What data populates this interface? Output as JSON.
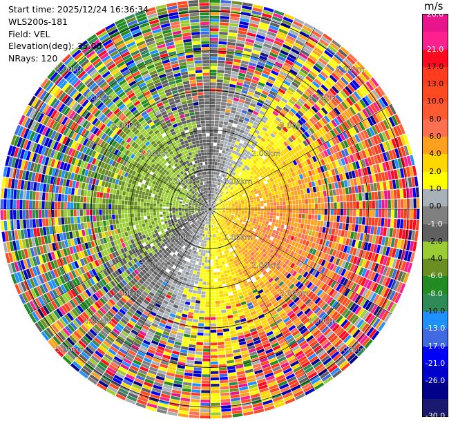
{
  "info": {
    "start_time": "Start time: 2025/12/24 16:36:34",
    "instrument": "WLS200s-181",
    "field": "Field: VEL",
    "elevation": "Elevation(deg): 35.00",
    "nrays": "NRays: 120"
  },
  "colorbar": {
    "unit": "m/s",
    "bins": [
      {
        "color": "#e8158c",
        "label": "26.0"
      },
      {
        "color": "#ff2090",
        "label": ""
      },
      {
        "color": "#ff0a1e",
        "label": "21.0"
      },
      {
        "color": "#ff3c1e",
        "label": "17.0"
      },
      {
        "color": "#ff4a20",
        "label": "13.0"
      },
      {
        "color": "#ff5a32",
        "label": "10.0"
      },
      {
        "color": "#ff7050",
        "label": "8.0"
      },
      {
        "color": "#ffa11e",
        "label": "6.0"
      },
      {
        "color": "#ffd700",
        "label": "4.0"
      },
      {
        "color": "#ffff00",
        "label": "2.0"
      },
      {
        "color": "#a8b0b8",
        "label": "1.0"
      },
      {
        "color": "#808080",
        "label": "0.0"
      },
      {
        "color": "#606060",
        "label": "-1.0"
      },
      {
        "color": "#9acd32",
        "label": "-2.0"
      },
      {
        "color": "#6b8e23",
        "label": "-4.0"
      },
      {
        "color": "#228b22",
        "label": "-6.0"
      },
      {
        "color": "#2e8b57",
        "label": "-8.0"
      },
      {
        "color": "#1e90ff",
        "label": "-10.0"
      },
      {
        "color": "#4169e1",
        "label": "-13.0"
      },
      {
        "color": "#0000ff",
        "label": "-17.0"
      },
      {
        "color": "#0000cd",
        "label": "-21.0"
      },
      {
        "color": "#00008b",
        "label": "-26.0"
      },
      {
        "color": "#191970",
        "label": "-30.0"
      }
    ]
  },
  "chart_data": {
    "type": "heatmap",
    "projection": "polar (PPI)",
    "field": "VEL",
    "units": "m/s",
    "rays": 120,
    "range_rings_km": [
      1,
      2,
      3,
      4,
      5
    ],
    "ring_labels": [
      "1.00km",
      "2.00km",
      "3.00km",
      "4.00km",
      "5.00km"
    ],
    "max_range_km": 5.3,
    "color_scale_range": [
      -30,
      26
    ],
    "velocity_pattern": {
      "positive_sector_center_deg_from_north": 110,
      "negative_sector_center_deg_from_north": 250,
      "near_range_peak_ms": 9,
      "far_range_noise": true
    }
  }
}
